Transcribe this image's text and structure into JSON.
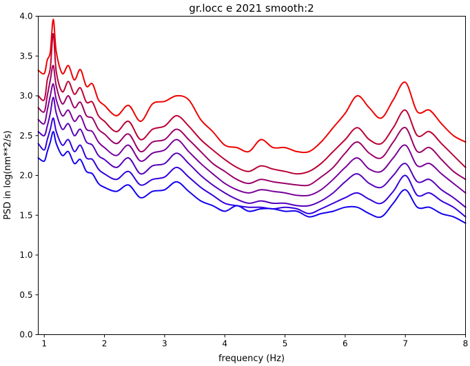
{
  "chart_data": {
    "type": "line",
    "title": "gr.locc e 2021 smooth:2",
    "xlabel": "frequency (Hz)",
    "ylabel": "PSD in log(nm**2/s)",
    "xlim": [
      0.9,
      8.0
    ],
    "ylim": [
      0.0,
      4.0
    ],
    "xticks": [
      1,
      2,
      3,
      4,
      5,
      6,
      7,
      8
    ],
    "xtick_labels": [
      "1",
      "2",
      "3",
      "4",
      "5",
      "6",
      "7",
      "8"
    ],
    "yticks": [
      0.0,
      0.5,
      1.0,
      1.5,
      2.0,
      2.5,
      3.0,
      3.5,
      4.0
    ],
    "ytick_labels": [
      "0.0",
      "0.5",
      "1.0",
      "1.5",
      "2.0",
      "2.5",
      "3.0",
      "3.5",
      "4.0"
    ],
    "grid": false,
    "legend": "none",
    "x": [
      0.9,
      1.0,
      1.05,
      1.1,
      1.15,
      1.2,
      1.3,
      1.4,
      1.5,
      1.6,
      1.7,
      1.8,
      1.9,
      2.0,
      2.2,
      2.4,
      2.6,
      2.8,
      3.0,
      3.2,
      3.4,
      3.6,
      3.8,
      4.0,
      4.2,
      4.4,
      4.6,
      4.8,
      5.0,
      5.2,
      5.4,
      5.6,
      5.8,
      6.0,
      6.2,
      6.4,
      6.6,
      6.8,
      7.0,
      7.2,
      7.4,
      7.6,
      7.8,
      8.0
    ],
    "series": [
      {
        "color": "#ee0000",
        "values": [
          3.32,
          3.28,
          3.45,
          3.55,
          3.96,
          3.55,
          3.28,
          3.38,
          3.2,
          3.33,
          3.12,
          3.15,
          2.95,
          2.88,
          2.75,
          2.88,
          2.68,
          2.9,
          2.93,
          3.0,
          2.95,
          2.7,
          2.55,
          2.38,
          2.35,
          2.3,
          2.45,
          2.35,
          2.35,
          2.3,
          2.3,
          2.42,
          2.6,
          2.78,
          3.0,
          2.85,
          2.72,
          2.95,
          3.17,
          2.8,
          2.82,
          2.65,
          2.5,
          2.42
        ]
      },
      {
        "color": "#bb0033",
        "values": [
          3.0,
          2.95,
          3.2,
          3.35,
          3.78,
          3.3,
          3.05,
          3.18,
          3.02,
          3.1,
          2.92,
          2.92,
          2.75,
          2.68,
          2.55,
          2.68,
          2.45,
          2.58,
          2.62,
          2.75,
          2.62,
          2.45,
          2.32,
          2.2,
          2.1,
          2.05,
          2.12,
          2.08,
          2.05,
          2.02,
          2.05,
          2.15,
          2.3,
          2.45,
          2.6,
          2.45,
          2.4,
          2.6,
          2.82,
          2.5,
          2.55,
          2.4,
          2.25,
          2.1
        ]
      },
      {
        "color": "#990066",
        "values": [
          2.85,
          2.8,
          3.0,
          3.2,
          3.38,
          3.12,
          2.9,
          3.0,
          2.85,
          2.92,
          2.75,
          2.72,
          2.58,
          2.52,
          2.4,
          2.52,
          2.3,
          2.42,
          2.45,
          2.58,
          2.45,
          2.3,
          2.15,
          2.05,
          1.95,
          1.9,
          1.95,
          1.92,
          1.9,
          1.88,
          1.88,
          1.98,
          2.1,
          2.28,
          2.42,
          2.28,
          2.22,
          2.42,
          2.6,
          2.3,
          2.35,
          2.2,
          2.05,
          1.95
        ]
      },
      {
        "color": "#770099",
        "values": [
          2.7,
          2.65,
          2.82,
          3.0,
          3.15,
          2.95,
          2.75,
          2.82,
          2.68,
          2.75,
          2.58,
          2.55,
          2.42,
          2.35,
          2.25,
          2.38,
          2.18,
          2.28,
          2.32,
          2.45,
          2.3,
          2.15,
          2.02,
          1.9,
          1.82,
          1.78,
          1.82,
          1.8,
          1.78,
          1.75,
          1.75,
          1.82,
          1.95,
          2.1,
          2.22,
          2.08,
          2.05,
          2.22,
          2.38,
          2.12,
          2.15,
          2.02,
          1.9,
          1.78
        ]
      },
      {
        "color": "#5500bb",
        "values": [
          2.55,
          2.5,
          2.62,
          2.78,
          2.98,
          2.78,
          2.58,
          2.65,
          2.5,
          2.58,
          2.42,
          2.38,
          2.25,
          2.2,
          2.1,
          2.22,
          2.02,
          2.12,
          2.15,
          2.28,
          2.15,
          2.0,
          1.88,
          1.78,
          1.7,
          1.65,
          1.68,
          1.65,
          1.65,
          1.62,
          1.62,
          1.68,
          1.78,
          1.92,
          2.02,
          1.9,
          1.85,
          2.0,
          2.15,
          1.92,
          1.95,
          1.82,
          1.72,
          1.6
        ]
      },
      {
        "color": "#3300dd",
        "values": [
          2.4,
          2.32,
          2.45,
          2.58,
          2.72,
          2.55,
          2.38,
          2.45,
          2.3,
          2.38,
          2.22,
          2.2,
          2.08,
          2.02,
          1.95,
          2.05,
          1.88,
          1.95,
          1.98,
          2.1,
          1.98,
          1.85,
          1.75,
          1.65,
          1.62,
          1.6,
          1.6,
          1.58,
          1.6,
          1.58,
          1.52,
          1.58,
          1.65,
          1.72,
          1.78,
          1.7,
          1.65,
          1.8,
          2.0,
          1.75,
          1.78,
          1.68,
          1.6,
          1.48
        ]
      },
      {
        "color": "#1100ee",
        "values": [
          2.22,
          2.18,
          2.3,
          2.42,
          2.55,
          2.4,
          2.25,
          2.3,
          2.15,
          2.2,
          2.05,
          2.02,
          1.9,
          1.85,
          1.8,
          1.88,
          1.72,
          1.8,
          1.82,
          1.92,
          1.8,
          1.68,
          1.62,
          1.55,
          1.62,
          1.55,
          1.58,
          1.58,
          1.55,
          1.55,
          1.48,
          1.52,
          1.55,
          1.6,
          1.6,
          1.52,
          1.48,
          1.65,
          1.82,
          1.6,
          1.6,
          1.52,
          1.48,
          1.4
        ]
      }
    ]
  }
}
